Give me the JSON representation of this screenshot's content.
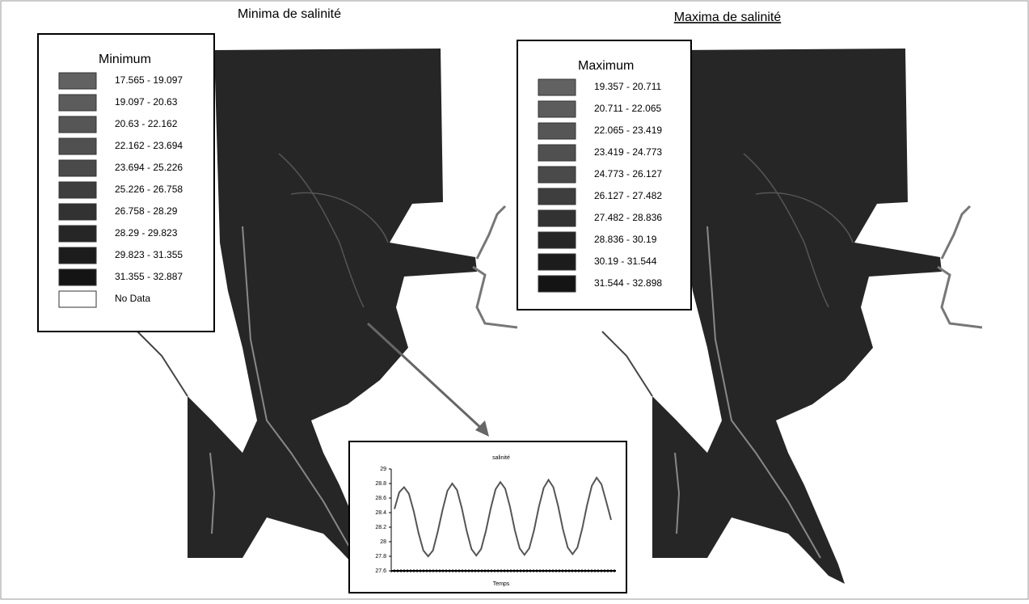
{
  "maps": [
    {
      "title": "Minima de salinité",
      "legend": {
        "title": "Minimum",
        "items": [
          {
            "label": "17.565 - 19.097",
            "color": "#626262"
          },
          {
            "label": "19.097 - 20.63",
            "color": "#5c5c5c"
          },
          {
            "label": "20.63 - 22.162",
            "color": "#565656"
          },
          {
            "label": "22.162 - 23.694",
            "color": "#505050"
          },
          {
            "label": "23.694 - 25.226",
            "color": "#4a4a4a"
          },
          {
            "label": "25.226 - 26.758",
            "color": "#3e3e3e"
          },
          {
            "label": "26.758 - 28.29",
            "color": "#323232"
          },
          {
            "label": "28.29 - 29.823",
            "color": "#262626"
          },
          {
            "label": "29.823 - 31.355",
            "color": "#1c1c1c"
          },
          {
            "label": "31.355 - 32.887",
            "color": "#141414"
          },
          {
            "label": "No Data",
            "color": "#ffffff"
          }
        ]
      }
    },
    {
      "title": "Maxima de salinité",
      "legend": {
        "title": "Maximum",
        "items": [
          {
            "label": "19.357 - 20.711",
            "color": "#626262"
          },
          {
            "label": "20.711 - 22.065",
            "color": "#5c5c5c"
          },
          {
            "label": "22.065 - 23.419",
            "color": "#565656"
          },
          {
            "label": "23.419 - 24.773",
            "color": "#505050"
          },
          {
            "label": "24.773 - 26.127",
            "color": "#4a4a4a"
          },
          {
            "label": "26.127 - 27.482",
            "color": "#3e3e3e"
          },
          {
            "label": "27.482 - 28.836",
            "color": "#323232"
          },
          {
            "label": "28.836 - 30.19",
            "color": "#262626"
          },
          {
            "label": "30.19 - 31.544",
            "color": "#1c1c1c"
          },
          {
            "label": "31.544 - 32.898",
            "color": "#141414"
          }
        ]
      }
    }
  ],
  "chart_data": {
    "type": "line",
    "title": "salinité",
    "x_label": "Temps",
    "color": "#555555",
    "ylim": [
      27.6,
      29
    ],
    "yticks": [
      {
        "value": 27.6,
        "label": "27.6"
      },
      {
        "value": 27.8,
        "label": "27.8"
      },
      28,
      {
        "value": 28.2,
        "label": "28.2"
      },
      {
        "value": 28.4,
        "label": "28.4"
      },
      {
        "value": 28.6,
        "label": "28.6"
      },
      {
        "value": 28.8,
        "label": "28.8"
      },
      29
    ],
    "values": [
      28.45,
      28.68,
      28.75,
      28.66,
      28.42,
      28.12,
      27.88,
      27.8,
      27.88,
      28.14,
      28.44,
      28.7,
      28.8,
      28.71,
      28.46,
      28.15,
      27.9,
      27.81,
      27.9,
      28.15,
      28.46,
      28.72,
      28.82,
      28.73,
      28.48,
      28.16,
      27.91,
      27.82,
      27.91,
      28.16,
      28.48,
      28.74,
      28.85,
      28.75,
      28.49,
      28.17,
      27.92,
      27.83,
      27.92,
      28.18,
      28.5,
      28.77,
      28.88,
      28.79,
      28.55,
      28.3
    ]
  }
}
